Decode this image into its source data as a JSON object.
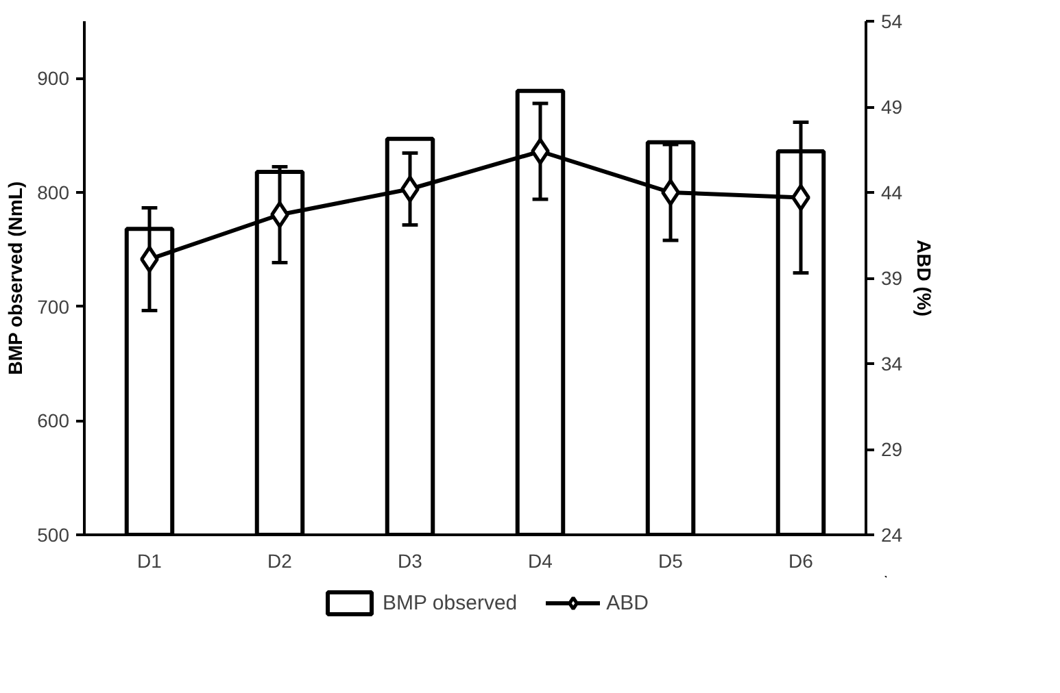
{
  "chart_data": {
    "type": "bar",
    "categories": [
      "D1",
      "D2",
      "D3",
      "D4",
      "D5",
      "D6"
    ],
    "ylabel": "BMP observed (NmL)",
    "y2label": "ABD (%)",
    "ylim": [
      500,
      950
    ],
    "yticks": [
      500,
      600,
      700,
      800,
      900
    ],
    "y2lim": [
      24,
      54
    ],
    "y2ticks": [
      24,
      29,
      34,
      39,
      44,
      49,
      54
    ],
    "series": [
      {
        "name": "BMP observed",
        "color": "#ffffff",
        "values": [
          768,
          818,
          847,
          889,
          844,
          836
        ]
      },
      {
        "name": "ABD",
        "type": "line",
        "axis": "y2",
        "color": "#000000",
        "marker": "diamond",
        "values": [
          40.1,
          42.7,
          44.2,
          46.4,
          44.0,
          43.7
        ],
        "errors": [
          3.0,
          2.8,
          2.1,
          2.8,
          2.8,
          4.4
        ]
      }
    ],
    "grid": false,
    "legend": "bottom"
  }
}
